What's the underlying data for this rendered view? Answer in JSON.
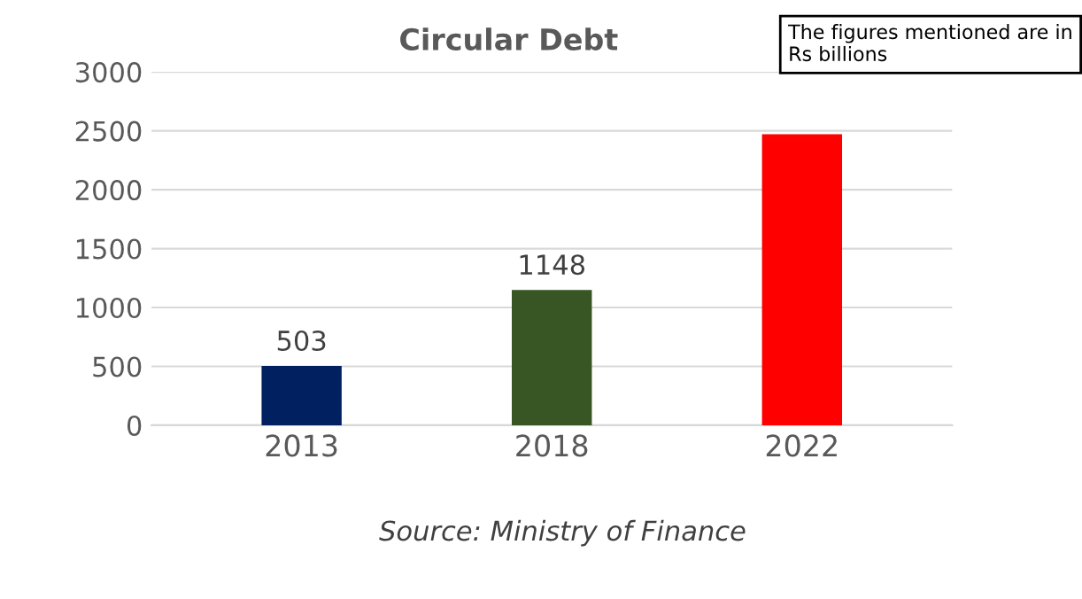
{
  "chart_data": {
    "type": "bar",
    "title": "Circular Debt",
    "categories": [
      "2013",
      "2018",
      "2022"
    ],
    "values": [
      503,
      1148,
      2470
    ],
    "colors": [
      "#002060",
      "#375623",
      "#ff0000"
    ],
    "value_labels": [
      "503",
      "1148",
      null
    ],
    "ylim": [
      0,
      3000
    ],
    "yticks": [
      0,
      500,
      1000,
      1500,
      2000,
      2500,
      3000
    ],
    "grid": "y",
    "annotations": [
      "The figures mentioned are in Rs billions",
      "Source: Ministry of Finance"
    ]
  }
}
